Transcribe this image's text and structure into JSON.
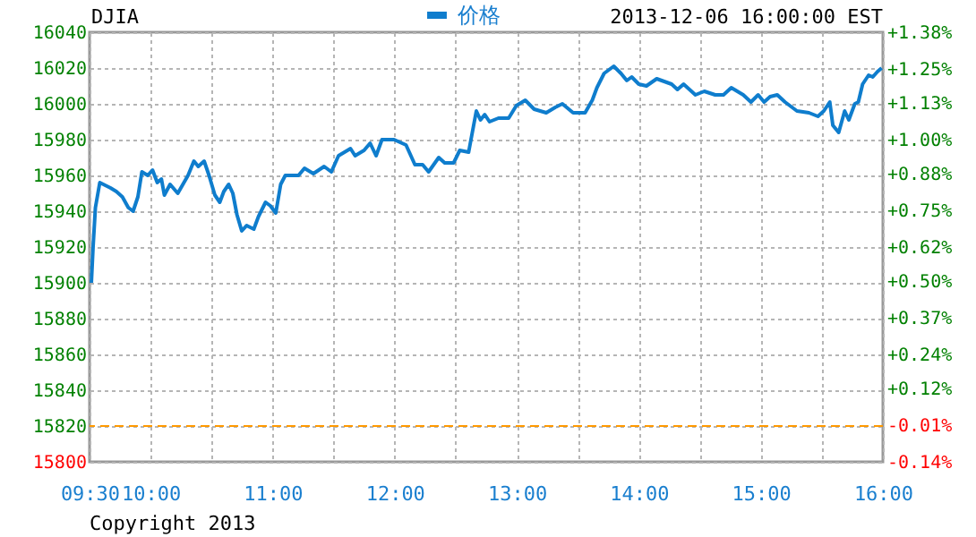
{
  "chart_data": {
    "type": "line",
    "title": "DJIA",
    "annotations": [
      "2013-12-06 16:00:00 EST",
      "Copyright 2013"
    ],
    "x": [
      9.515,
      9.529,
      9.548,
      9.584,
      9.672,
      9.72,
      9.769,
      9.818,
      9.857,
      9.896,
      9.929,
      9.977,
      10.016,
      10.055,
      10.089,
      10.113,
      10.16,
      10.223,
      10.307,
      10.355,
      10.391,
      10.439,
      10.479,
      10.527,
      10.567,
      10.6,
      10.64,
      10.674,
      10.708,
      10.747,
      10.787,
      10.846,
      10.884,
      10.942,
      10.982,
      11.026,
      11.066,
      11.104,
      11.212,
      11.261,
      11.334,
      11.422,
      11.481,
      11.54,
      11.638,
      11.676,
      11.749,
      11.799,
      11.848,
      11.896,
      11.995,
      12.093,
      12.166,
      12.229,
      12.278,
      12.361,
      12.41,
      12.483,
      12.533,
      12.606,
      12.669,
      12.703,
      12.738,
      12.777,
      12.85,
      12.934,
      12.997,
      13.07,
      13.143,
      13.242,
      13.315,
      13.374,
      13.462,
      13.56,
      13.619,
      13.657,
      13.716,
      13.795,
      13.854,
      13.902,
      13.942,
      14.0,
      14.063,
      14.147,
      14.269,
      14.317,
      14.367,
      14.464,
      14.537,
      14.626,
      14.694,
      14.758,
      14.856,
      14.919,
      14.978,
      15.027,
      15.076,
      15.135,
      15.198,
      15.296,
      15.394,
      15.468,
      15.516,
      15.565,
      15.59,
      15.638,
      15.687,
      15.721,
      15.77,
      15.799,
      15.834,
      15.883,
      15.917,
      15.956,
      15.99
    ],
    "series": [
      {
        "name": "价格",
        "color": "#0f7dcd",
        "values": [
          15900,
          15920,
          15942,
          15956,
          15953,
          15951,
          15948,
          15942,
          15940,
          15948,
          15962,
          15960,
          15963,
          15956,
          15958,
          15949,
          15955,
          15950,
          15960,
          15968,
          15965,
          15968,
          15960,
          15949,
          15945,
          15951,
          15955,
          15950,
          15938,
          15929,
          15932,
          15930,
          15937,
          15945,
          15943,
          15939,
          15955,
          15960,
          15960,
          15964,
          15961,
          15965,
          15962,
          15971,
          15975,
          15971,
          15974,
          15978,
          15971,
          15980,
          15980,
          15977,
          15966,
          15966,
          15962,
          15970,
          15967,
          15967,
          15974,
          15973,
          15996,
          15991,
          15994,
          15990,
          15992,
          15992,
          15999,
          16002,
          15997,
          15995,
          15998,
          16000,
          15995,
          15995,
          16002,
          16009,
          16017,
          16021,
          16017,
          16013,
          16015,
          16011,
          16010,
          16014,
          16011,
          16008,
          16011,
          16005,
          16007,
          16005,
          16005,
          16009,
          16005,
          16001,
          16005,
          16001,
          16004,
          16005,
          16001,
          15996,
          15995,
          15993,
          15996,
          16001,
          15988,
          15984,
          15996,
          15991,
          16000,
          16001,
          16011,
          16016,
          16015,
          16018,
          16020
        ]
      }
    ],
    "xlim": [
      9.5,
      16
    ],
    "xticks": [
      {
        "value": 9.5,
        "label": "09:30"
      },
      {
        "value": 10,
        "label": "10:00"
      },
      {
        "value": 10.5,
        "label": null
      },
      {
        "value": 11,
        "label": "11:00"
      },
      {
        "value": 11.5,
        "label": null
      },
      {
        "value": 12,
        "label": "12:00"
      },
      {
        "value": 12.5,
        "label": null
      },
      {
        "value": 13,
        "label": "13:00"
      },
      {
        "value": 13.5,
        "label": null
      },
      {
        "value": 14,
        "label": "14:00"
      },
      {
        "value": 14.5,
        "label": null
      },
      {
        "value": 15,
        "label": "15:00"
      },
      {
        "value": 15.5,
        "label": null
      },
      {
        "value": 16,
        "label": "16:00"
      }
    ],
    "ylim": [
      15800,
      16040
    ],
    "yticks": [
      15800,
      15820,
      15840,
      15860,
      15880,
      15900,
      15920,
      15940,
      15960,
      15980,
      16000,
      16020,
      16040
    ],
    "y2lim": [
      -0.14,
      1.38
    ],
    "y2ticks": [
      {
        "value": -0.14,
        "label": "-0.14%"
      },
      {
        "value": -0.01,
        "label": "-0.01%"
      },
      {
        "value": 0.12,
        "label": "+0.12%"
      },
      {
        "value": 0.24,
        "label": "+0.24%"
      },
      {
        "value": 0.37,
        "label": "+0.37%"
      },
      {
        "value": 0.5,
        "label": "+0.50%"
      },
      {
        "value": 0.62,
        "label": "+0.62%"
      },
      {
        "value": 0.75,
        "label": "+0.75%"
      },
      {
        "value": 0.88,
        "label": "+0.88%"
      },
      {
        "value": 1.0,
        "label": "+1.00%"
      },
      {
        "value": 1.13,
        "label": "+1.13%"
      },
      {
        "value": 1.25,
        "label": "+1.25%"
      },
      {
        "value": 1.38,
        "label": "+1.38%"
      }
    ],
    "ref_lines": [
      {
        "axis": "y",
        "value": 15820,
        "color": "#ff9900",
        "line_style": "dashed"
      }
    ],
    "grid": true,
    "legend": "top",
    "marker": "none",
    "line_style": "solid"
  }
}
